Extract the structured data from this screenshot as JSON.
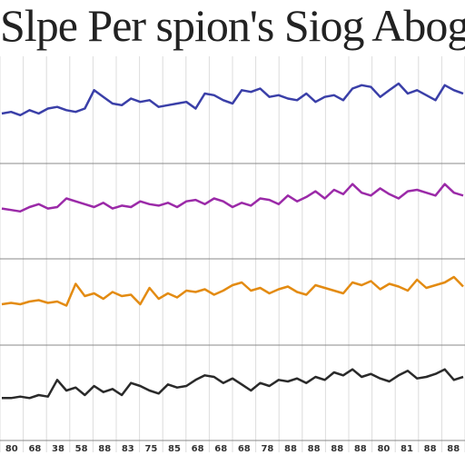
{
  "title": "Slpe Per spion's Siog Abog",
  "colors": {
    "grid": "#dcdcdc",
    "axis": "#888888"
  },
  "chart_data": [
    {
      "type": "line",
      "title": "",
      "color": "#3a3fa8",
      "x": [
        0,
        1,
        2,
        3,
        4,
        5,
        6,
        7,
        8,
        9,
        10,
        11,
        12,
        13,
        14,
        15,
        16,
        17,
        18,
        19,
        20,
        21,
        22,
        23,
        24,
        25,
        26,
        27,
        28,
        29,
        30,
        31,
        32,
        33,
        34,
        35,
        36,
        37,
        38,
        39,
        40,
        41,
        42,
        43,
        44,
        45,
        46,
        47,
        48,
        49,
        50
      ],
      "values": [
        30,
        31,
        29,
        32,
        30,
        33,
        34,
        32,
        31,
        33,
        44,
        40,
        36,
        35,
        39,
        37,
        38,
        34,
        35,
        36,
        37,
        33,
        42,
        41,
        38,
        36,
        44,
        43,
        45,
        40,
        41,
        39,
        38,
        42,
        37,
        40,
        41,
        38,
        45,
        47,
        46,
        40,
        44,
        48,
        42,
        44,
        41,
        38,
        47,
        44,
        42
      ],
      "ylim": [
        0,
        60
      ],
      "x_tick_labels": [
        "",
        "",
        "",
        "",
        "",
        "",
        "",
        "",
        "",
        "",
        "",
        "",
        "",
        "",
        "",
        "",
        "",
        "",
        "",
        ""
      ]
    },
    {
      "type": "line",
      "title": "",
      "color": "#9b2aa8",
      "x": [
        0,
        1,
        2,
        3,
        4,
        5,
        6,
        7,
        8,
        9,
        10,
        11,
        12,
        13,
        14,
        15,
        16,
        17,
        18,
        19,
        20,
        21,
        22,
        23,
        24,
        25,
        26,
        27,
        28,
        29,
        30,
        31,
        32,
        33,
        34,
        35,
        36,
        37,
        38,
        39,
        40,
        41,
        42,
        43,
        44,
        45,
        46,
        47,
        48,
        49,
        50
      ],
      "values": [
        35,
        34,
        33,
        36,
        38,
        35,
        36,
        42,
        40,
        38,
        36,
        39,
        35,
        37,
        36,
        40,
        38,
        37,
        39,
        36,
        40,
        41,
        38,
        42,
        40,
        36,
        39,
        37,
        42,
        41,
        38,
        44,
        40,
        43,
        47,
        42,
        48,
        45,
        52,
        46,
        44,
        49,
        45,
        42,
        47,
        48,
        46,
        44,
        52,
        46,
        44
      ],
      "ylim": [
        0,
        60
      ],
      "x_tick_labels": [
        "",
        "",
        "",
        "",
        "",
        "",
        "",
        "",
        "",
        "",
        "",
        "",
        "",
        "",
        "",
        "",
        "",
        "",
        "",
        ""
      ]
    },
    {
      "type": "line",
      "title": "",
      "color": "#e38b12",
      "x": [
        0,
        1,
        2,
        3,
        4,
        5,
        6,
        7,
        8,
        9,
        10,
        11,
        12,
        13,
        14,
        15,
        16,
        17,
        18,
        19,
        20,
        21,
        22,
        23,
        24,
        25,
        26,
        27,
        28,
        29,
        30,
        31,
        32,
        33,
        34,
        35,
        36,
        37,
        38,
        39,
        40,
        41,
        42,
        43,
        44,
        45,
        46,
        47,
        48,
        49,
        50
      ],
      "values": [
        30,
        31,
        30,
        32,
        33,
        31,
        32,
        29,
        45,
        36,
        38,
        34,
        39,
        36,
        37,
        30,
        42,
        34,
        38,
        35,
        40,
        39,
        41,
        37,
        40,
        44,
        46,
        40,
        42,
        38,
        41,
        43,
        39,
        37,
        44,
        42,
        40,
        38,
        46,
        44,
        47,
        41,
        45,
        43,
        40,
        48,
        42,
        44,
        46,
        50,
        43
      ],
      "ylim": [
        0,
        60
      ],
      "x_tick_labels": [
        "",
        "",
        "",
        "",
        "",
        "",
        "",
        "",
        "",
        "",
        "",
        "",
        "",
        "",
        "",
        "",
        "",
        "",
        "",
        ""
      ]
    },
    {
      "type": "line",
      "title": "",
      "color": "#2a2a2a",
      "x": [
        0,
        1,
        2,
        3,
        4,
        5,
        6,
        7,
        8,
        9,
        10,
        11,
        12,
        13,
        14,
        15,
        16,
        17,
        18,
        19,
        20,
        21,
        22,
        23,
        24,
        25,
        26,
        27,
        28,
        29,
        30,
        31,
        32,
        33,
        34,
        35,
        36,
        37,
        38,
        39,
        40,
        41,
        42,
        43,
        44,
        45,
        46,
        47,
        48,
        49,
        50
      ],
      "values": [
        28,
        28,
        29,
        28,
        30,
        29,
        40,
        33,
        35,
        30,
        36,
        32,
        34,
        30,
        38,
        36,
        33,
        31,
        37,
        35,
        36,
        40,
        43,
        42,
        38,
        41,
        37,
        33,
        38,
        36,
        40,
        39,
        41,
        38,
        42,
        40,
        45,
        43,
        47,
        42,
        44,
        41,
        39,
        43,
        46,
        41,
        42,
        44,
        47,
        40,
        42
      ],
      "ylim": [
        0,
        60
      ],
      "x_tick_labels": [
        "80",
        "68",
        "38",
        "58",
        "88",
        "83",
        "75",
        "85",
        "68",
        "68",
        "68",
        "78",
        "88",
        "88",
        "88",
        "88",
        "80",
        "81",
        "88",
        "88"
      ]
    }
  ]
}
